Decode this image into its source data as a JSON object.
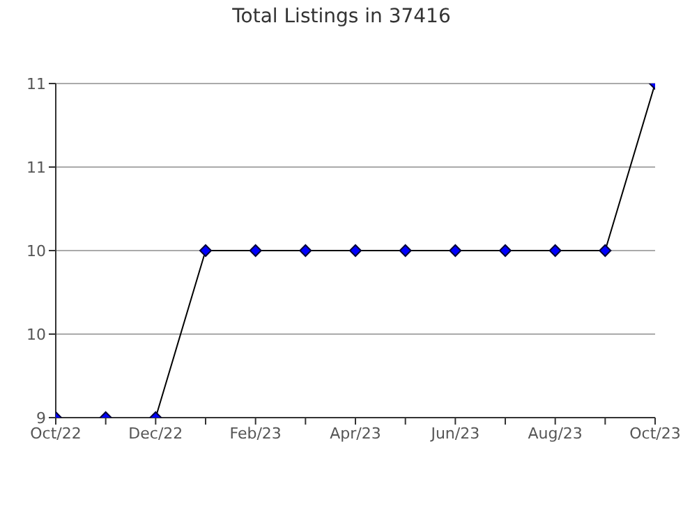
{
  "chart_data": {
    "type": "line",
    "title": "Total Listings in 37416",
    "categories": [
      "Oct/22",
      null,
      "Dec/22",
      null,
      "Feb/23",
      null,
      "Apr/23",
      null,
      "Jun/23",
      null,
      "Aug/23",
      null,
      "Oct/23"
    ],
    "series": [
      {
        "color": "#0000ff",
        "values": [
          9,
          9,
          9,
          10,
          10,
          10,
          10,
          10,
          10,
          10,
          10,
          10,
          11
        ]
      }
    ],
    "ylim": [
      9,
      11
    ],
    "yticks": [
      {
        "value": 9,
        "label": "9"
      },
      {
        "value": 9.5,
        "label": "10"
      },
      {
        "value": 10,
        "label": "10"
      },
      {
        "value": 10.5,
        "label": "11"
      },
      {
        "value": 11,
        "label": "11"
      }
    ],
    "grid": "y",
    "marker": "diamond",
    "line_style": "solid",
    "legend": false
  }
}
